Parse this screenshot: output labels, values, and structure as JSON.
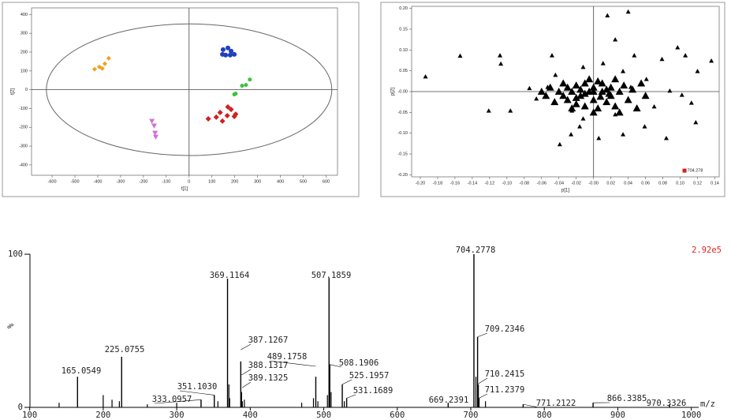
{
  "chart_data": [
    {
      "type": "scatter",
      "x_label": "t[1]",
      "y_label": "t[2]",
      "xlim": [
        -690,
        650
      ],
      "ylim": [
        -455,
        435
      ],
      "xticks": [
        -600,
        -500,
        -400,
        -300,
        -200,
        -100,
        0,
        100,
        200,
        300,
        400,
        500,
        600
      ],
      "yticks": [
        -400,
        -300,
        -200,
        -100,
        0,
        100,
        200,
        300,
        400
      ],
      "ellipse": {
        "rx": 625,
        "ry": 350
      },
      "series": [
        {
          "color": "#f0a020",
          "marker": "diamond",
          "size": 3,
          "x": [
            -414,
            -393,
            -380,
            -369,
            -352
          ],
          "y": [
            109,
            121,
            113,
            138,
            167
          ]
        },
        {
          "color": "#2040c0",
          "marker": "circle",
          "size": 3,
          "x": [
            149,
            170,
            184,
            160,
            180,
            198,
            146
          ],
          "y": [
            213,
            222,
            205,
            184,
            184,
            188,
            188
          ]
        },
        {
          "color": "#40c040",
          "marker": "circle",
          "size": 2.5,
          "x": [
            266,
            249,
            232,
            204,
            198
          ],
          "y": [
            54,
            25,
            21,
            -21,
            -25
          ]
        },
        {
          "color": "#d02020",
          "marker": "diamond",
          "size": 3.5,
          "x": [
            84,
            119,
            170,
            136,
            167,
            204,
            198,
            146,
            184
          ],
          "y": [
            -155,
            -146,
            -92,
            -121,
            -138,
            -130,
            -142,
            -167,
            -105
          ]
        },
        {
          "color": "#d070d0",
          "marker": "triangle-down",
          "size": 3.5,
          "x": [
            -163,
            -153,
            -149,
            -146
          ],
          "y": [
            -167,
            -192,
            -230,
            -251
          ]
        }
      ]
    },
    {
      "type": "scatter",
      "x_label": "p[1]",
      "y_label": "p[2]",
      "xlim": [
        -0.21,
        0.145
      ],
      "ylim": [
        -0.205,
        0.205
      ],
      "xticks": [
        {
          "value": -0.2,
          "label": "-0.20"
        },
        {
          "value": -0.18,
          "label": "-0.18"
        },
        {
          "value": -0.16,
          "label": "-0.16"
        },
        {
          "value": -0.14,
          "label": "-0.14"
        },
        {
          "value": -0.12,
          "label": "-0.12"
        },
        {
          "value": -0.1,
          "label": "-0.10"
        },
        {
          "value": -0.08,
          "label": "-0.08"
        },
        {
          "value": -0.06,
          "label": "-0.06"
        },
        {
          "value": -0.04,
          "label": "-0.04"
        },
        {
          "value": -0.02,
          "label": "-0.02"
        },
        {
          "value": 0,
          "label": "-0.00"
        },
        {
          "value": 0.02,
          "label": "0.02"
        },
        {
          "value": 0.04,
          "label": "0.04"
        },
        {
          "value": 0.06,
          "label": "0.06"
        },
        {
          "value": 0.08,
          "label": "0.08"
        },
        {
          "value": 0.1,
          "label": "0.10"
        },
        {
          "value": 0.12,
          "label": "0.12"
        },
        {
          "value": 0.14,
          "label": "0.14"
        }
      ],
      "yticks": [
        {
          "value": -0.2,
          "label": "-0.20"
        },
        {
          "value": -0.15,
          "label": "-0.15"
        },
        {
          "value": -0.1,
          "label": "-0.10"
        },
        {
          "value": -0.05,
          "label": "-0.05"
        },
        {
          "value": 0,
          "label": "-0.00"
        },
        {
          "value": 0.05,
          "label": "0.05"
        },
        {
          "value": 0.1,
          "label": "0.10"
        },
        {
          "value": 0.15,
          "label": "0.15"
        },
        {
          "value": 0.2,
          "label": "0.20"
        }
      ],
      "annotation": {
        "text": "704.278",
        "x": 0.105,
        "y": -0.19,
        "color": "#cc2222"
      },
      "series": [
        {
          "color": "#000000",
          "marker": "triangle",
          "size": 3,
          "x": [
            -0.194,
            -0.154,
            -0.108,
            -0.107,
            -0.096,
            -0.121,
            -0.048,
            -0.074,
            -0.039,
            -0.026,
            -0.016,
            0.016,
            0.04,
            0.025,
            0.047,
            0.079,
            0.097,
            0.106,
            0.136,
            0.12,
            0.113,
            0.118,
            0.084,
            0.059,
            0.034,
            0.006,
            -0.053,
            -0.066,
            -0.044,
            0.061,
            0.088,
            0.102,
            0.07,
            0.025,
            -0.012,
            -0.025,
            -0.012,
            0.011,
            0.034,
            0.043
          ],
          "y": [
            0.036,
            0.086,
            0.087,
            0.067,
            -0.046,
            -0.046,
            0.087,
            0.008,
            -0.127,
            -0.103,
            -0.084,
            0.183,
            0.192,
            0.125,
            0.087,
            0.078,
            0.106,
            0.087,
            0.074,
            0.049,
            -0.027,
            -0.074,
            -0.112,
            -0.084,
            -0.103,
            -0.112,
            0.011,
            -0.017,
            0.04,
            0.03,
            0.002,
            -0.008,
            -0.036,
            -0.055,
            -0.065,
            -0.046,
            0.059,
            0.068,
            0.049,
            0.011
          ]
        },
        {
          "color": "#000000",
          "marker": "triangle",
          "size": 5,
          "x": [
            -0.04,
            -0.035,
            -0.03,
            -0.03,
            -0.025,
            -0.02,
            -0.02,
            -0.015,
            -0.01,
            -0.01,
            -0.005,
            0,
            0,
            0.005,
            0.01,
            0.01,
            0.015,
            0.02,
            0.02,
            0.025,
            0.03,
            0.035,
            0.04,
            0.045,
            -0.045,
            -0.05,
            -0.055,
            0.05,
            -0.005,
            0.005,
            0,
            -0.015,
            0.015,
            -0.025,
            0.03,
            0.06,
            -0.06,
            0.055,
            -0.035,
            0.025,
            -0.01,
            0.008,
            -0.02,
            0.018,
            0
          ],
          "y": [
            0,
            -0.01,
            0.01,
            -0.02,
            0,
            -0.03,
            0.015,
            -0.01,
            0.02,
            -0.035,
            0,
            -0.02,
            0.01,
            -0.04,
            0,
            0.02,
            -0.025,
            0.01,
            -0.01,
            -0.035,
            0,
            0.015,
            -0.02,
            0.005,
            -0.025,
            0.01,
            -0.01,
            -0.04,
            0.03,
            0.025,
            -0.05,
            0.005,
            0.005,
            -0.04,
            -0.05,
            -0.01,
            0,
            0.02,
            0.02,
            0.03,
            -0.005,
            -0.012,
            -0.015,
            -0.005,
            0
          ]
        }
      ]
    },
    {
      "type": "stem",
      "x_label": "m/z",
      "y_label": "%",
      "annotation": {
        "text": "2.92e5",
        "color": "#dd2222"
      },
      "xlim": [
        95,
        1010
      ],
      "ylim": [
        0,
        100
      ],
      "xticks": [
        100,
        200,
        300,
        400,
        500,
        600,
        700,
        800,
        900,
        1000
      ],
      "yticks": [
        0,
        100
      ],
      "color": "#000000",
      "x": [
        165.0549,
        225.0755,
        333.0957,
        351.103,
        369.1164,
        387.1267,
        388.1317,
        389.1325,
        489.1758,
        507.1859,
        508.1906,
        525.1957,
        531.1689,
        669.2391,
        704.2778,
        709.2346,
        710.2415,
        711.2379,
        771.2122,
        866.3385,
        970.3326
      ],
      "value_labels": [
        "165.0549",
        "225.0755",
        "333.0957",
        "351.1030",
        "369.1164",
        "387.1267",
        "388.1317",
        "389.1325",
        "489.1758",
        "507.1859",
        "508.1906",
        "525.1957",
        "531.1689",
        "669.2391",
        "704.2778",
        "709.2346",
        "710.2415",
        "711.2379",
        "771.2122",
        "866.3385",
        "970.3326"
      ],
      "values": [
        20,
        33,
        5,
        8,
        84,
        30,
        10,
        4,
        20,
        84.5,
        28,
        15,
        6,
        3,
        100,
        46,
        15,
        6,
        2,
        3,
        2
      ],
      "minor_x": [
        140,
        200,
        212,
        222,
        260,
        300,
        356,
        371,
        372,
        392,
        470,
        486,
        492,
        505,
        510,
        528,
        707,
        720
      ],
      "minor_values": [
        3,
        8,
        5,
        4,
        2,
        3,
        4,
        15,
        6,
        5,
        3,
        6,
        4,
        8,
        10,
        4,
        20,
        4
      ]
    }
  ]
}
